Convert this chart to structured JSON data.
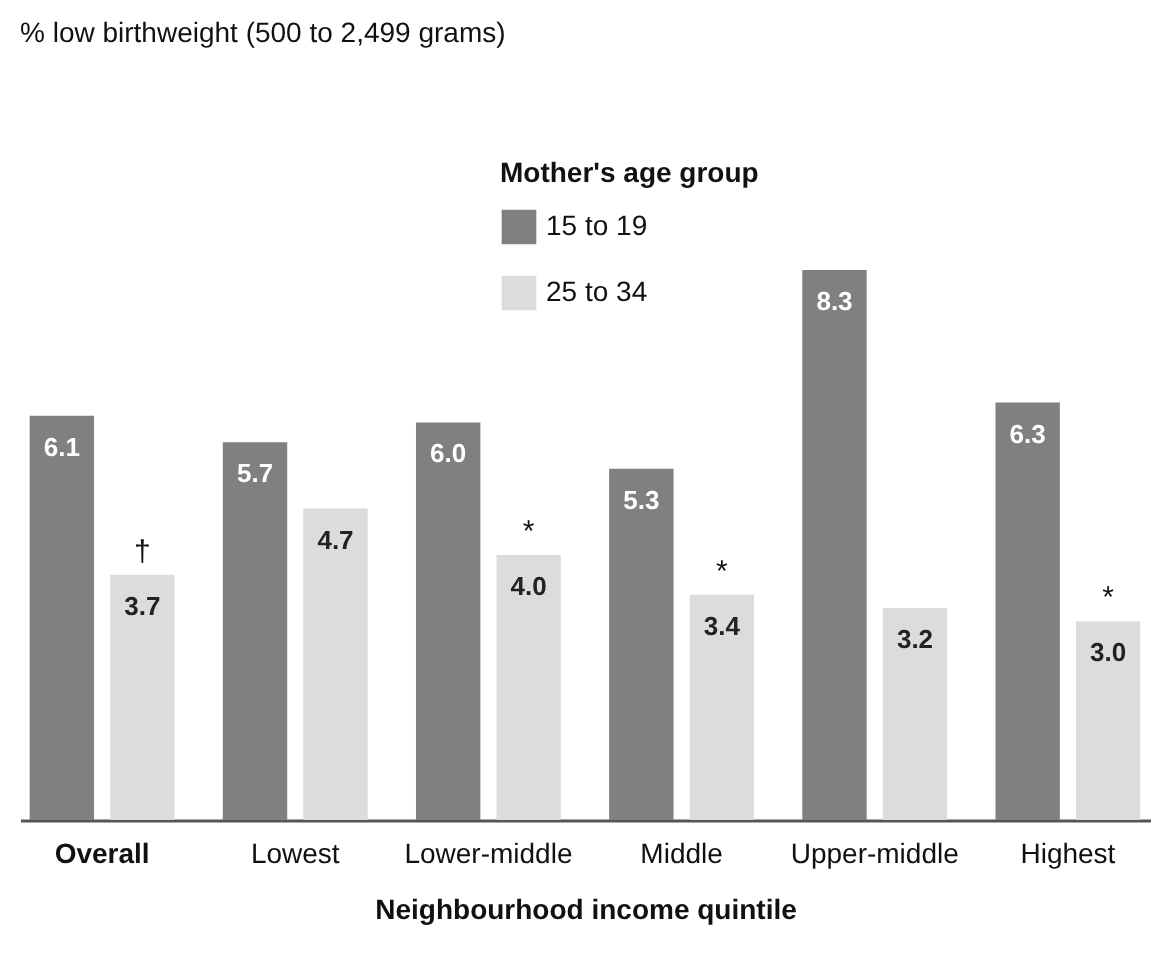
{
  "chart_data": {
    "type": "bar",
    "xlabel": "Neighbourhood income quintile",
    "legend_title": "Mother's age group",
    "legend": "top",
    "categories": [
      "Overall",
      "Lowest",
      "Lower-middle",
      "Middle",
      "Upper-middle",
      "Highest"
    ],
    "series": [
      {
        "name": "15 to 19",
        "color": "#808080",
        "values": [
          6.1,
          5.7,
          6.0,
          5.3,
          8.3,
          6.3
        ],
        "value_labels": [
          "6.1",
          "5.7",
          "6.0",
          "5.3",
          "8.3",
          "6.3"
        ]
      },
      {
        "name": "25 to 34",
        "color": "#dcdcdc",
        "values": [
          3.7,
          4.7,
          4.0,
          3.4,
          3.2,
          3.0
        ],
        "value_labels": [
          "3.7",
          "4.7",
          "4.0",
          "3.4",
          "3.2",
          "3.0"
        ]
      }
    ],
    "annotations": [
      "% low birthweight (500 to 2,499 grams)",
      {
        "text": "†",
        "x": "Overall",
        "y": 3.7
      },
      {
        "text": "*",
        "x": "Lower-middle",
        "y": 4.0
      },
      {
        "text": "*",
        "x": "Middle",
        "y": 3.4
      },
      {
        "text": "*",
        "x": "Highest",
        "y": 3.0
      }
    ]
  }
}
